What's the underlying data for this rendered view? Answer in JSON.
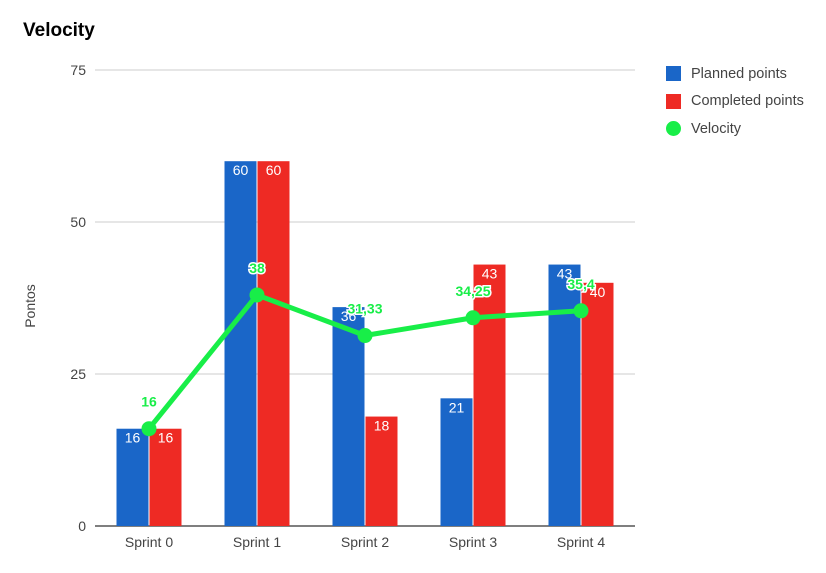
{
  "chart_data": {
    "type": "bar",
    "title": "Velocity",
    "xlabel": "",
    "ylabel": "Pontos",
    "ylim": [
      0,
      75
    ],
    "yticks": [
      "0",
      "25",
      "50",
      "75"
    ],
    "categories": [
      "Sprint 0",
      "Sprint 1",
      "Sprint 2",
      "Sprint 3",
      "Sprint 4"
    ],
    "series": [
      {
        "name": "Planned points",
        "type": "bar",
        "color": "#1a66c8",
        "values": [
          16,
          60,
          36,
          21,
          43
        ],
        "labels": [
          "16",
          "60",
          "36",
          "21",
          "43"
        ]
      },
      {
        "name": "Completed points",
        "type": "bar",
        "color": "#ee2a24",
        "values": [
          16,
          60,
          18,
          43,
          40
        ],
        "labels": [
          "16",
          "60",
          "18",
          "43",
          "40"
        ]
      },
      {
        "name": "Velocity",
        "type": "line",
        "color": "#18ee48",
        "values": [
          16,
          38,
          31.33,
          34.25,
          35.4
        ],
        "labels": [
          "16",
          "38",
          "31,33",
          "34,25",
          "35,4"
        ]
      }
    ],
    "grid": true,
    "legend": "right"
  }
}
